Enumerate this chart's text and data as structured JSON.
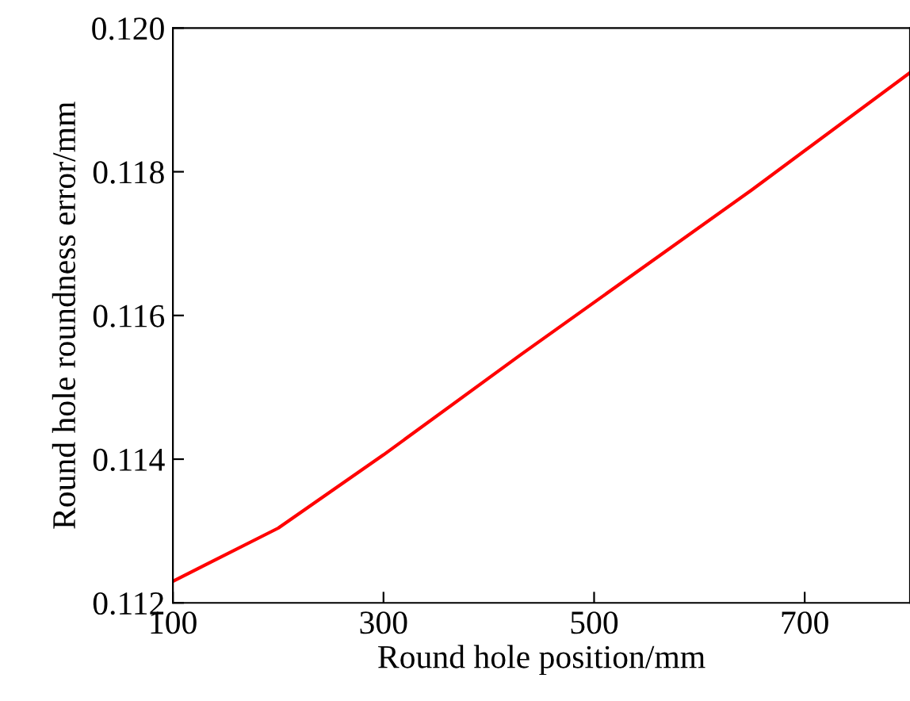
{
  "chart_data": {
    "type": "line",
    "xlabel": "Round hole position/mm",
    "ylabel": "Round hole roundness error/mm",
    "x": [
      100,
      200,
      300,
      430,
      650,
      800
    ],
    "series": [
      {
        "color": "#ff0000",
        "values": [
          0.1123,
          0.11304,
          0.11406,
          0.11545,
          0.11775,
          0.11938
        ]
      }
    ],
    "xlim": [
      100,
      800
    ],
    "xticks": [
      100,
      300,
      500,
      700
    ],
    "ylim": [
      0.112,
      0.12
    ],
    "yticks": [
      {
        "value": 0.112,
        "label": "0.112"
      },
      {
        "value": 0.114,
        "label": "0.114"
      },
      {
        "value": 0.116,
        "label": "0.116"
      },
      {
        "value": 0.118,
        "label": "0.118"
      },
      {
        "value": 0.12,
        "label": "0.120"
      }
    ],
    "grid": false,
    "legend": false,
    "marker": "none",
    "line_style": "solid"
  }
}
